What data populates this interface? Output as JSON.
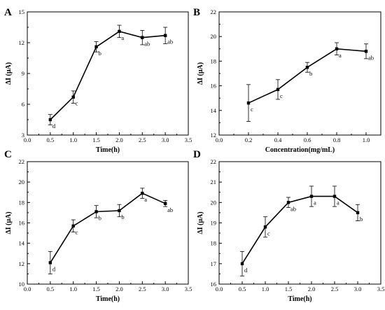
{
  "chart_data": [
    {
      "type": "line",
      "panel": "A",
      "xlabel": "Time(h)",
      "ylabel": "ΔI (μA)",
      "xlim": [
        0.0,
        3.5
      ],
      "ylim": [
        3,
        15
      ],
      "xticks": [
        "0.0",
        "0.5",
        "1.0",
        "1.5",
        "2.0",
        "2.5",
        "3.0",
        "3.5"
      ],
      "yticks": [
        "3",
        "6",
        "9",
        "12",
        "15"
      ],
      "grid": false,
      "x": [
        0.5,
        1.0,
        1.5,
        2.0,
        2.5,
        3.0
      ],
      "y": [
        4.5,
        6.7,
        11.6,
        13.1,
        12.5,
        12.7
      ],
      "err": [
        0.5,
        0.6,
        0.5,
        0.6,
        0.7,
        0.8
      ],
      "sig": [
        "d",
        "c",
        "b",
        "a",
        "ab",
        "ab"
      ]
    },
    {
      "type": "line",
      "panel": "B",
      "xlabel": "Concentration(mg/mL)",
      "ylabel": "ΔI (μA)",
      "xlim": [
        0.0,
        1.1
      ],
      "ylim": [
        12,
        22
      ],
      "xticks": [
        "0.0",
        "0.2",
        "0.4",
        "0.6",
        "0.8",
        "1.0"
      ],
      "yticks": [
        "12",
        "14",
        "16",
        "18",
        "20",
        "22"
      ],
      "grid": false,
      "x": [
        0.2,
        0.4,
        0.6,
        0.8,
        1.0
      ],
      "y": [
        14.6,
        15.7,
        17.5,
        19.0,
        18.8
      ],
      "err": [
        1.5,
        0.8,
        0.4,
        0.5,
        0.6
      ],
      "sig": [
        "c",
        "c",
        "b",
        "a",
        "ab"
      ]
    },
    {
      "type": "line",
      "panel": "C",
      "xlabel": "Time(h)",
      "ylabel": "ΔI (μA)",
      "xlim": [
        0.0,
        3.5
      ],
      "ylim": [
        10,
        22
      ],
      "xticks": [
        "0.0",
        "0.5",
        "1.0",
        "1.5",
        "2.0",
        "2.5",
        "3.0",
        "3.5"
      ],
      "yticks": [
        "10",
        "12",
        "14",
        "16",
        "18",
        "20",
        "22"
      ],
      "grid": false,
      "x": [
        0.5,
        1.0,
        1.5,
        2.0,
        2.5,
        3.0
      ],
      "y": [
        12.1,
        15.7,
        17.1,
        17.2,
        18.9,
        17.9
      ],
      "err": [
        1.1,
        0.6,
        0.6,
        0.6,
        0.5,
        0.3
      ],
      "sig": [
        "d",
        "c",
        "b",
        "b",
        "a",
        "ab"
      ]
    },
    {
      "type": "line",
      "panel": "D",
      "xlabel": "Time(h)",
      "ylabel": "ΔI (μA)",
      "xlim": [
        0.0,
        3.5
      ],
      "ylim": [
        16,
        22
      ],
      "xticks": [
        "0.0",
        "0.5",
        "1.0",
        "1.5",
        "2.0",
        "2.5",
        "3.0",
        "3.5"
      ],
      "yticks": [
        "16",
        "17",
        "18",
        "19",
        "20",
        "21",
        "22"
      ],
      "grid": false,
      "x": [
        0.5,
        1.0,
        1.5,
        2.0,
        2.5,
        3.0
      ],
      "y": [
        17.0,
        18.8,
        20.0,
        20.3,
        20.3,
        19.5
      ],
      "err": [
        0.6,
        0.5,
        0.25,
        0.5,
        0.5,
        0.4
      ],
      "sig": [
        "d",
        "c",
        "ab",
        "a",
        "a",
        "b"
      ]
    }
  ]
}
